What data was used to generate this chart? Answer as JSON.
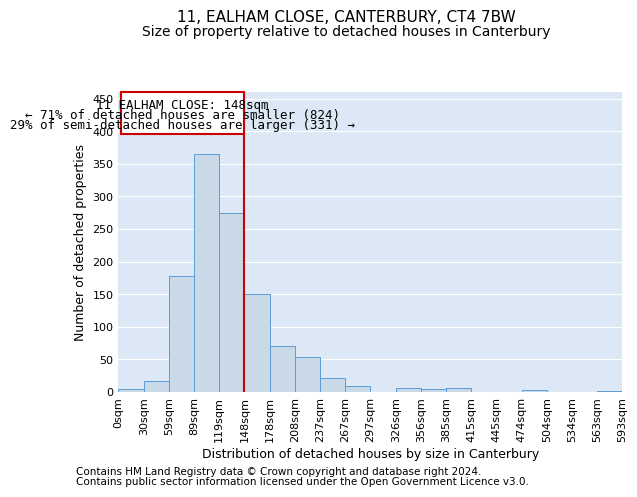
{
  "title": "11, EALHAM CLOSE, CANTERBURY, CT4 7BW",
  "subtitle": "Size of property relative to detached houses in Canterbury",
  "xlabel": "Distribution of detached houses by size in Canterbury",
  "ylabel": "Number of detached properties",
  "footnote1": "Contains HM Land Registry data © Crown copyright and database right 2024.",
  "footnote2": "Contains public sector information licensed under the Open Government Licence v3.0.",
  "annotation_line1": "11 EALHAM CLOSE: 148sqm",
  "annotation_line2": "← 71% of detached houses are smaller (824)",
  "annotation_line3": "29% of semi-detached houses are larger (331) →",
  "bin_labels": [
    "0sqm",
    "30sqm",
    "59sqm",
    "89sqm",
    "119sqm",
    "148sqm",
    "178sqm",
    "208sqm",
    "237sqm",
    "267sqm",
    "297sqm",
    "326sqm",
    "356sqm",
    "385sqm",
    "415sqm",
    "445sqm",
    "474sqm",
    "504sqm",
    "534sqm",
    "563sqm",
    "593sqm"
  ],
  "bar_values": [
    4,
    17,
    178,
    365,
    275,
    150,
    70,
    54,
    22,
    9,
    0,
    6,
    5,
    6,
    0,
    0,
    3,
    0,
    0,
    2
  ],
  "bar_color": "#c9d9e8",
  "bar_edge_color": "#5b9bd5",
  "vline_color": "#cc0000",
  "ylim": [
    0,
    460
  ],
  "yticks": [
    0,
    50,
    100,
    150,
    200,
    250,
    300,
    350,
    400,
    450
  ],
  "background_color": "#dce8f5",
  "grid_color": "#ffffff",
  "title_fontsize": 11,
  "subtitle_fontsize": 10,
  "axis_label_fontsize": 9,
  "tick_fontsize": 8,
  "annotation_fontsize": 9,
  "footnote_fontsize": 7.5
}
